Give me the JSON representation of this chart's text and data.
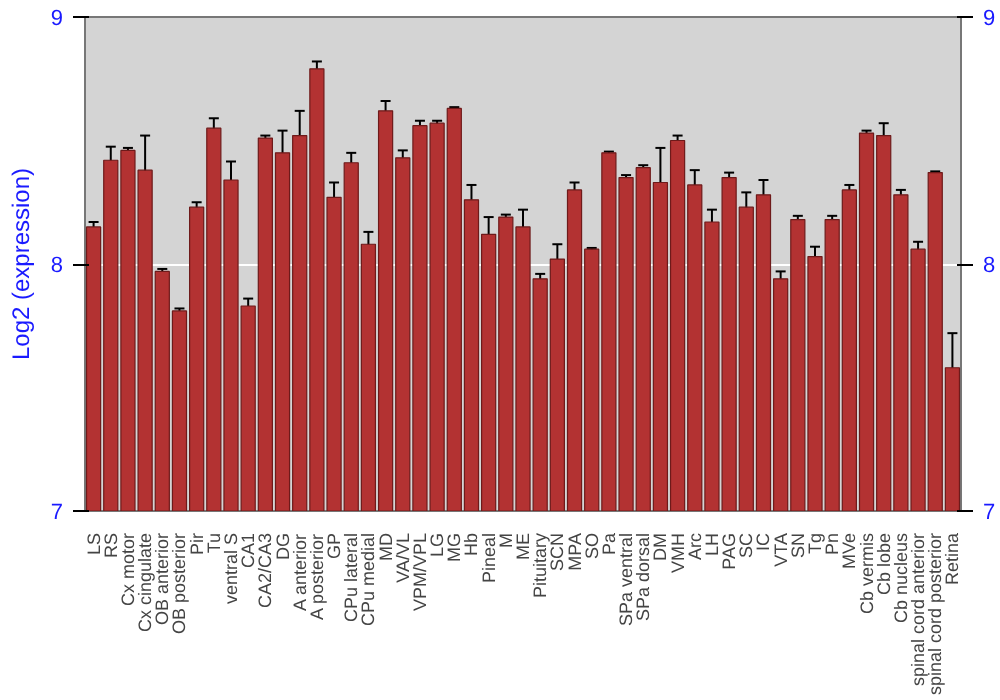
{
  "chart_data": {
    "type": "bar",
    "ylabel": "Log2 (expression)",
    "color": "#b33232",
    "categories": [
      "LS",
      "RS",
      "Cx motor",
      "Cx cingulate",
      "OB anterior",
      "OB posterior",
      "Pir",
      "Tu",
      "ventral S",
      "CA1",
      "CA2/CA3",
      "DG",
      "A anterior",
      "A posterior",
      "GP",
      "CPu lateral",
      "CPu medial",
      "MD",
      "VA/VL",
      "VPM/VPL",
      "LG",
      "MG",
      "Hb",
      "Pineal",
      "M",
      "ME",
      "Pituitary",
      "SCN",
      "MPA",
      "SO",
      "Pa",
      "SPa ventral",
      "SPa dorsal",
      "DM",
      "VMH",
      "Arc",
      "LH",
      "PAG",
      "SC",
      "IC",
      "VTA",
      "SN",
      "Tg",
      "Pn",
      "MVe",
      "Cb vermis",
      "Cb lobe",
      "Cb nucleus",
      "spinal cord anterior",
      "spinal cord posterior",
      "Retina"
    ],
    "values": [
      8.15,
      8.42,
      8.46,
      8.38,
      7.97,
      7.81,
      8.23,
      8.55,
      8.34,
      7.83,
      8.51,
      8.45,
      8.52,
      8.79,
      8.27,
      8.41,
      8.08,
      8.62,
      8.43,
      8.56,
      8.57,
      8.63,
      8.26,
      8.12,
      8.19,
      8.15,
      7.94,
      8.02,
      8.3,
      8.06,
      8.45,
      8.35,
      8.39,
      8.33,
      8.5,
      8.32,
      8.17,
      8.35,
      8.23,
      8.28,
      7.94,
      8.18,
      8.03,
      8.18,
      8.3,
      8.53,
      8.52,
      8.28,
      8.06,
      8.37,
      7.58
    ],
    "errors": [
      0.02,
      0.055,
      0.01,
      0.14,
      0.01,
      0.01,
      0.02,
      0.04,
      0.075,
      0.03,
      0.01,
      0.09,
      0.1,
      0.03,
      0.06,
      0.04,
      0.05,
      0.04,
      0.03,
      0.02,
      0.01,
      0.005,
      0.06,
      0.07,
      0.01,
      0.07,
      0.02,
      0.06,
      0.03,
      0.005,
      0.005,
      0.01,
      0.01,
      0.14,
      0.02,
      0.06,
      0.05,
      0.02,
      0.06,
      0.06,
      0.03,
      0.015,
      0.04,
      0.015,
      0.02,
      0.01,
      0.05,
      0.02,
      0.03,
      0.005,
      0.14
    ],
    "ylim": [
      7,
      9
    ],
    "yticks": [
      7,
      8,
      9
    ],
    "y2lim": [
      7,
      9
    ],
    "y2ticks": [
      7,
      8,
      9
    ],
    "grid": "y"
  }
}
